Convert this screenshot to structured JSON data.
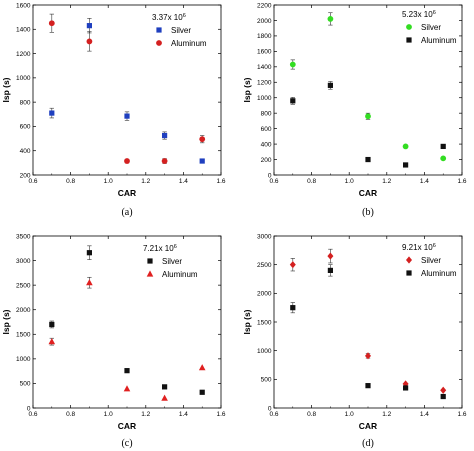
{
  "chart_data": [
    {
      "type": "scatter",
      "panel_label": "(a)",
      "annotation": "3.37x 10",
      "annotation_exp": "6",
      "xlabel": "CAR",
      "ylabel": "Isp (s)",
      "xlim": [
        0.6,
        1.6
      ],
      "ylim": [
        200,
        1600
      ],
      "xticks": [
        "0.6",
        "0.8",
        "1.0",
        "1.2",
        "1.4",
        "1.6"
      ],
      "yticks": [
        "200",
        "400",
        "600",
        "800",
        "1000",
        "1200",
        "1400",
        "1600"
      ],
      "legend_position": "top-right",
      "series": [
        {
          "name": "Silver",
          "color": "#1f3fbf",
          "marker": "square",
          "points": [
            {
              "x": 0.7,
              "y": 710,
              "err": 40
            },
            {
              "x": 0.9,
              "y": 1430,
              "err": 60
            },
            {
              "x": 1.1,
              "y": 685,
              "err": 35
            },
            {
              "x": 1.3,
              "y": 525,
              "err": 30
            },
            {
              "x": 1.5,
              "y": 315,
              "err": 0
            }
          ]
        },
        {
          "name": "Aluminum",
          "color": "#d42020",
          "marker": "circle",
          "points": [
            {
              "x": 0.7,
              "y": 1450,
              "err": 75
            },
            {
              "x": 0.9,
              "y": 1300,
              "err": 80
            },
            {
              "x": 1.1,
              "y": 315,
              "err": 15
            },
            {
              "x": 1.3,
              "y": 315,
              "err": 20
            },
            {
              "x": 1.5,
              "y": 495,
              "err": 30
            }
          ]
        }
      ]
    },
    {
      "type": "scatter",
      "panel_label": "(b)",
      "annotation": "5.23x 10",
      "annotation_exp": "6",
      "xlabel": "CAR",
      "ylabel": "Isp (s)",
      "xlim": [
        0.6,
        1.6
      ],
      "ylim": [
        0,
        2200
      ],
      "xticks": [
        "0.6",
        "0.8",
        "1.0",
        "1.2",
        "1.4",
        "1.6"
      ],
      "yticks": [
        "0",
        "200",
        "400",
        "600",
        "800",
        "1000",
        "1200",
        "1400",
        "1600",
        "1800",
        "2000",
        "2200"
      ],
      "legend_position": "top-right",
      "series": [
        {
          "name": "Silver",
          "color": "#33dd22",
          "marker": "circle",
          "points": [
            {
              "x": 0.7,
              "y": 1430,
              "err": 60
            },
            {
              "x": 0.9,
              "y": 2020,
              "err": 80
            },
            {
              "x": 1.1,
              "y": 760,
              "err": 40
            },
            {
              "x": 1.3,
              "y": 370,
              "err": 0
            },
            {
              "x": 1.5,
              "y": 215,
              "err": 0
            }
          ]
        },
        {
          "name": "Aluminum",
          "color": "#111111",
          "marker": "square",
          "points": [
            {
              "x": 0.7,
              "y": 960,
              "err": 45
            },
            {
              "x": 0.9,
              "y": 1160,
              "err": 50
            },
            {
              "x": 1.1,
              "y": 200,
              "err": 0
            },
            {
              "x": 1.3,
              "y": 130,
              "err": 0
            },
            {
              "x": 1.5,
              "y": 370,
              "err": 0
            }
          ]
        }
      ]
    },
    {
      "type": "scatter",
      "panel_label": "(c)",
      "annotation": "7.21x 10",
      "annotation_exp": "6",
      "xlabel": "CAR",
      "ylabel": "Isp (s)",
      "xlim": [
        0.6,
        1.6
      ],
      "ylim": [
        0,
        3500
      ],
      "xticks": [
        "0.6",
        "0.8",
        "1.0",
        "1.2",
        "1.4",
        "1.6"
      ],
      "yticks": [
        "0",
        "500",
        "1000",
        "1500",
        "2000",
        "2500",
        "3000",
        "3500"
      ],
      "legend_position": "top-right",
      "series": [
        {
          "name": "Silver",
          "color": "#111111",
          "marker": "square",
          "points": [
            {
              "x": 0.7,
              "y": 1700,
              "err": 70
            },
            {
              "x": 0.9,
              "y": 3160,
              "err": 140
            },
            {
              "x": 1.1,
              "y": 760,
              "err": 0
            },
            {
              "x": 1.3,
              "y": 430,
              "err": 0
            },
            {
              "x": 1.5,
              "y": 320,
              "err": 0
            }
          ]
        },
        {
          "name": "Aluminum",
          "color": "#e02020",
          "marker": "triangle",
          "points": [
            {
              "x": 0.7,
              "y": 1350,
              "err": 70
            },
            {
              "x": 0.9,
              "y": 2550,
              "err": 110
            },
            {
              "x": 1.1,
              "y": 390,
              "err": 0
            },
            {
              "x": 1.3,
              "y": 200,
              "err": 0
            },
            {
              "x": 1.5,
              "y": 820,
              "err": 0
            }
          ]
        }
      ]
    },
    {
      "type": "scatter",
      "panel_label": "(d)",
      "annotation": "9.21x 10",
      "annotation_exp": "6",
      "xlabel": "CAR",
      "ylabel": "Isp (s)",
      "xlim": [
        0.6,
        1.6
      ],
      "ylim": [
        0,
        3000
      ],
      "xticks": [
        "0.6",
        "0.8",
        "1.0",
        "1.2",
        "1.4",
        "1.6"
      ],
      "yticks": [
        "0",
        "500",
        "1000",
        "1500",
        "2000",
        "2500",
        "3000"
      ],
      "legend_position": "top-right",
      "series": [
        {
          "name": "Silver",
          "color": "#d42020",
          "marker": "diamond",
          "points": [
            {
              "x": 0.7,
              "y": 2500,
              "err": 110
            },
            {
              "x": 0.9,
              "y": 2650,
              "err": 120
            },
            {
              "x": 1.1,
              "y": 910,
              "err": 40
            },
            {
              "x": 1.3,
              "y": 420,
              "err": 0
            },
            {
              "x": 1.5,
              "y": 310,
              "err": 0
            }
          ]
        },
        {
          "name": "Aluminum",
          "color": "#111111",
          "marker": "square",
          "points": [
            {
              "x": 0.7,
              "y": 1750,
              "err": 90
            },
            {
              "x": 0.9,
              "y": 2400,
              "err": 100
            },
            {
              "x": 1.1,
              "y": 390,
              "err": 0
            },
            {
              "x": 1.3,
              "y": 350,
              "err": 0
            },
            {
              "x": 1.5,
              "y": 200,
              "err": 0
            }
          ]
        }
      ]
    }
  ]
}
